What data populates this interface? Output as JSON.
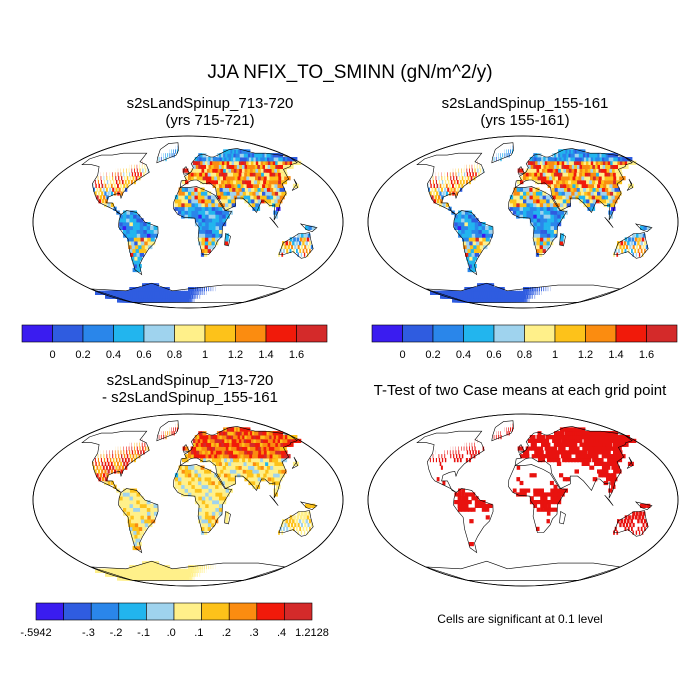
{
  "title": "JJA NFIX_TO_SMINN (gN/m^2/y)",
  "significance_note": "Cells are significant at 0.1 level",
  "colors": {
    "ocean": "#ffffff",
    "outline": "#000000",
    "significant": "#e8120f"
  },
  "chart_data": [
    {
      "type": "heatmap",
      "title": "s2sLandSpinup_713-720",
      "subtitle": "(yrs 715-721)",
      "colorbar": {
        "colors": [
          "#3a1cf0",
          "#2f5ce0",
          "#2a86ea",
          "#22b5ee",
          "#9fd3ee",
          "#fff08a",
          "#fdc21a",
          "#fb8c10",
          "#f11a0a",
          "#d42a2a"
        ],
        "tick_labels": [
          "0",
          "0.2",
          "0.4",
          "0.6",
          "0.8",
          "1",
          "1.2",
          "1.4",
          "1.6"
        ]
      }
    },
    {
      "type": "heatmap",
      "title": "s2sLandSpinup_155-161",
      "subtitle": "(yrs 155-161)",
      "colorbar": {
        "colors": [
          "#3a1cf0",
          "#2f5ce0",
          "#2a86ea",
          "#22b5ee",
          "#9fd3ee",
          "#fff08a",
          "#fdc21a",
          "#fb8c10",
          "#f11a0a",
          "#d42a2a"
        ],
        "tick_labels": [
          "0",
          "0.2",
          "0.4",
          "0.6",
          "0.8",
          "1",
          "1.2",
          "1.4",
          "1.6"
        ]
      }
    },
    {
      "type": "heatmap",
      "title": "s2sLandSpinup_713-720",
      "subtitle": "- s2sLandSpinup_155-161",
      "colorbar": {
        "colors": [
          "#3a1cf0",
          "#2f5ce0",
          "#2a86ea",
          "#22b5ee",
          "#9fd3ee",
          "#fff08a",
          "#fdc21a",
          "#fb8c10",
          "#f11a0a",
          "#d42a2a"
        ],
        "tick_labels": [
          "-.5942",
          "-.3",
          "-.2",
          "-.1",
          ".0",
          ".1",
          ".2",
          ".3",
          ".4",
          "1.2128"
        ]
      }
    },
    {
      "type": "heatmap",
      "title": "T-Test of two Case means at each grid point",
      "significance_level": 0.1
    }
  ]
}
